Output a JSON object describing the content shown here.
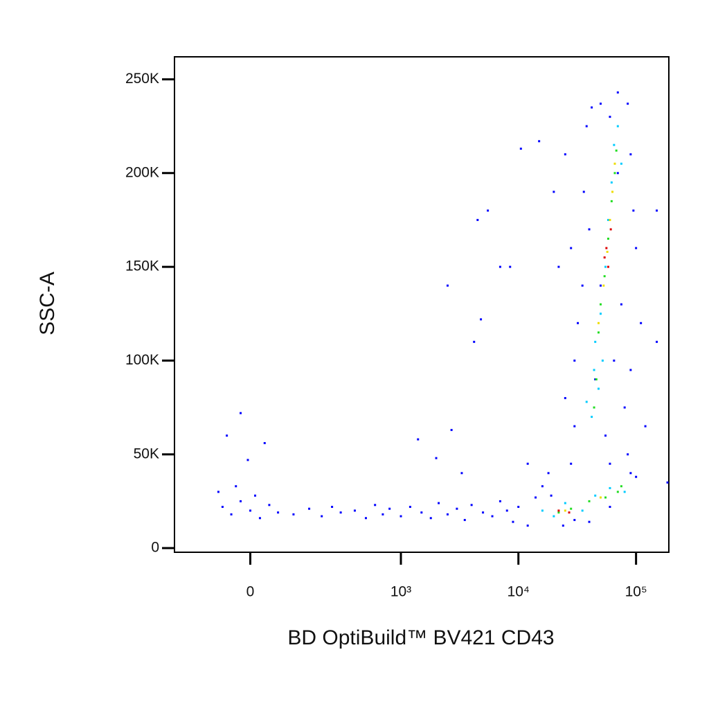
{
  "chart_data": {
    "type": "scatter",
    "x_label": "BD OptiBuild™ BV421 CD43",
    "y_label": "SSC-A",
    "xscale": "biexponential",
    "xlim": [
      -220,
      190000
    ],
    "ylim": [
      -2200,
      262000
    ],
    "xticks": [
      0,
      {
        "value": 1000,
        "label": "10³"
      },
      {
        "value": 10000,
        "label": "10⁴"
      },
      {
        "value": 100000,
        "label": "10⁵"
      }
    ],
    "yticks": [
      0,
      {
        "value": 50000,
        "label": "50K"
      },
      {
        "value": 100000,
        "label": "100K"
      },
      {
        "value": 150000,
        "label": "150K"
      },
      {
        "value": 200000,
        "label": "200K"
      },
      {
        "value": 250000,
        "label": "250K"
      }
    ],
    "series": [
      {
        "color": "#0000ff",
        "x": [
          -60,
          -40,
          -20,
          0,
          20,
          40,
          60,
          -70,
          -30,
          10,
          100,
          150,
          200,
          250,
          300,
          400,
          500,
          600,
          700,
          800,
          1000,
          1200,
          1500,
          1800,
          2100,
          2500,
          3000,
          3500,
          4000,
          5000,
          6000,
          7000,
          8000,
          9000,
          10000,
          12000,
          14000,
          16000,
          18000,
          12000,
          -50,
          -20,
          -5,
          30,
          1400,
          2000,
          2700,
          3300,
          4200,
          4800,
          5500,
          4500,
          2500,
          7000,
          8500,
          10500,
          15000,
          20000,
          25000,
          28000,
          30000,
          32000,
          35000,
          30000,
          28000,
          36000,
          38000,
          42000,
          50000,
          60000,
          70000,
          85000,
          90000,
          95000,
          100000,
          110000,
          150000,
          120000,
          100000,
          85000,
          80000,
          90000,
          75000,
          70000,
          45000,
          40000,
          55000,
          60000,
          65000,
          50000,
          185000,
          150000,
          90000,
          25000,
          22000,
          19000,
          24000,
          30000,
          40000,
          60000
        ],
        "y": [
          22000,
          18000,
          25000,
          20000,
          16000,
          23000,
          19000,
          30000,
          33000,
          28000,
          18000,
          21000,
          17000,
          22000,
          19000,
          20000,
          16000,
          23000,
          18000,
          21000,
          17000,
          22000,
          19000,
          16000,
          24000,
          18000,
          21000,
          15000,
          23000,
          19000,
          17000,
          25000,
          20000,
          14000,
          22000,
          12000,
          27000,
          33000,
          40000,
          45000,
          60000,
          72000,
          47000,
          56000,
          58000,
          48000,
          63000,
          40000,
          110000,
          122000,
          180000,
          175000,
          140000,
          150000,
          150000,
          213000,
          217000,
          190000,
          210000,
          160000,
          100000,
          120000,
          140000,
          65000,
          45000,
          190000,
          225000,
          235000,
          237000,
          230000,
          243000,
          237000,
          210000,
          180000,
          160000,
          120000,
          110000,
          65000,
          38000,
          50000,
          75000,
          95000,
          130000,
          200000,
          90000,
          170000,
          60000,
          45000,
          100000,
          140000,
          35000,
          180000,
          40000,
          80000,
          150000,
          28000,
          12000,
          15000,
          14000,
          22000
        ]
      },
      {
        "color": "#00ccff",
        "x": [
          16000,
          20000,
          25000,
          35000,
          45000,
          60000,
          42000,
          48000,
          45000,
          50000,
          55000,
          58000,
          62000,
          65000,
          70000,
          52000,
          75000,
          80000,
          38000,
          44000
        ],
        "y": [
          20000,
          17000,
          24000,
          20000,
          28000,
          32000,
          70000,
          85000,
          110000,
          125000,
          150000,
          175000,
          195000,
          215000,
          225000,
          100000,
          205000,
          30000,
          78000,
          95000
        ]
      },
      {
        "color": "#22dd22",
        "x": [
          22000,
          28000,
          40000,
          55000,
          70000,
          44000,
          46000,
          50000,
          54000,
          58000,
          62000,
          66000,
          68000,
          48000,
          75000
        ],
        "y": [
          19000,
          21000,
          25000,
          27000,
          30000,
          75000,
          90000,
          130000,
          145000,
          165000,
          185000,
          200000,
          212000,
          115000,
          33000
        ]
      },
      {
        "color": "#eedd00",
        "x": [
          25000,
          50000,
          53000,
          57000,
          63000,
          60000,
          48000,
          66000
        ],
        "y": [
          20000,
          27000,
          140000,
          158000,
          190000,
          175000,
          120000,
          205000
        ]
      },
      {
        "color": "#dd0000",
        "x": [
          22000,
          27000,
          56000,
          58000,
          61000,
          54000
        ],
        "y": [
          20000,
          19000,
          160000,
          150000,
          170000,
          155000
        ]
      }
    ]
  }
}
